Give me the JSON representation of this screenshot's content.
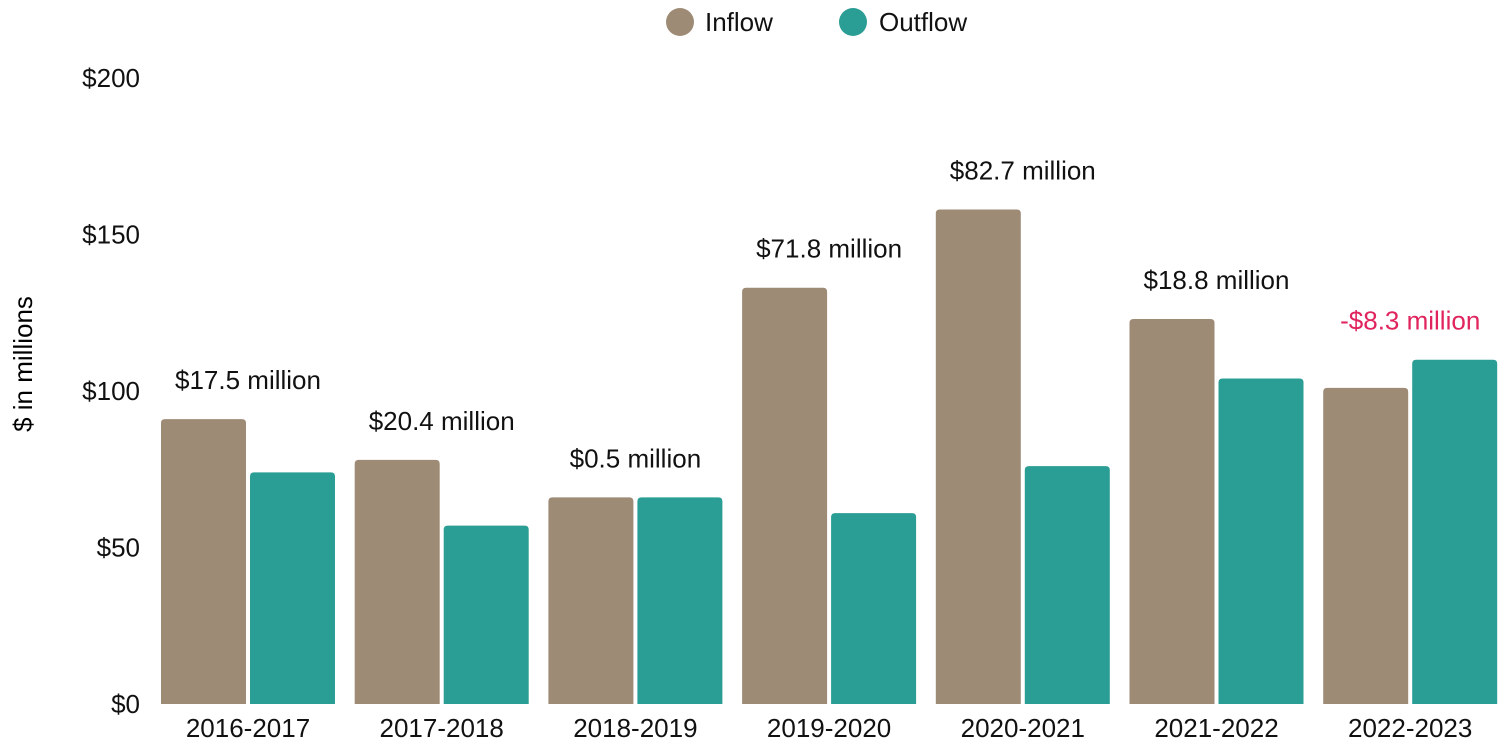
{
  "chart_data": {
    "type": "bar",
    "title": "",
    "xlabel": "",
    "ylabel": "$ in millions",
    "ylim": [
      0,
      200
    ],
    "yticks": [
      0,
      50,
      100,
      150,
      200
    ],
    "ytick_labels": [
      "$0",
      "$50",
      "$100",
      "$150",
      "$200"
    ],
    "categories": [
      "2016-2017",
      "2017-2018",
      "2018-2019",
      "2019-2020",
      "2020-2021",
      "2021-2022",
      "2022-2023"
    ],
    "series": [
      {
        "name": "Inflow",
        "color": "#9E8B76",
        "values": [
          91,
          78,
          66,
          133,
          158,
          123,
          101
        ]
      },
      {
        "name": "Outflow",
        "color": "#2A9D94",
        "values": [
          74,
          57,
          66,
          61,
          76,
          104,
          110
        ]
      }
    ],
    "annotations": [
      {
        "category": "2016-2017",
        "text": "$17.5 million",
        "color": "#111111"
      },
      {
        "category": "2017-2018",
        "text": "$20.4 million",
        "color": "#111111"
      },
      {
        "category": "2018-2019",
        "text": "$0.5 million",
        "color": "#111111"
      },
      {
        "category": "2019-2020",
        "text": "$71.8 million",
        "color": "#111111"
      },
      {
        "category": "2020-2021",
        "text": "$82.7 million",
        "color": "#111111"
      },
      {
        "category": "2021-2022",
        "text": "$18.8 million",
        "color": "#111111"
      },
      {
        "category": "2022-2023",
        "text": "-$8.3 million",
        "color": "#E0245E"
      }
    ],
    "legend": {
      "placement": "top-center",
      "items": [
        {
          "label": "Inflow",
          "color": "#9E8B76"
        },
        {
          "label": "Outflow",
          "color": "#2A9D94"
        }
      ]
    },
    "grid": false
  }
}
